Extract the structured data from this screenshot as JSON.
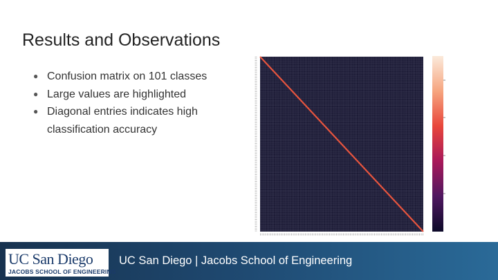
{
  "slide": {
    "title": "Results and Observations",
    "bullets": [
      "Confusion matrix on 101 classes",
      "Large values are highlighted",
      "Diagonal entries indicates high classification accuracy"
    ],
    "footer": "UC San Diego | Jacobs School of Engineering",
    "logo": {
      "name": "UC San Diego",
      "school": "JACOBS SCHOOL OF ENGINEERING"
    }
  }
}
